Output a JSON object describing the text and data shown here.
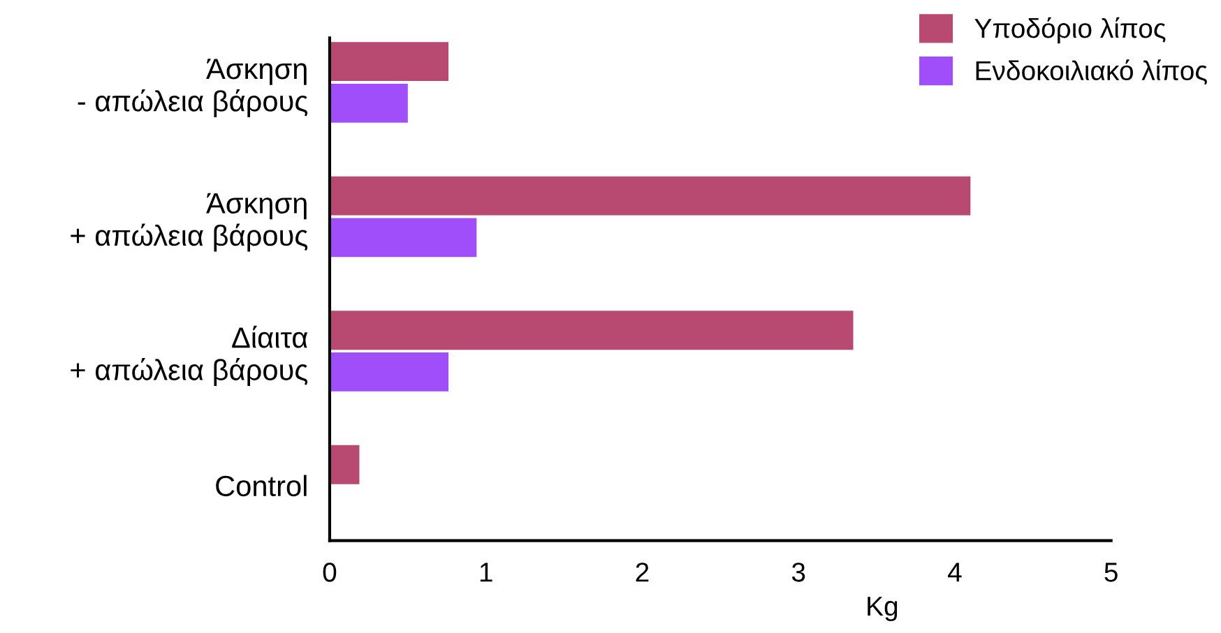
{
  "chart_data": {
    "type": "bar",
    "orientation": "horizontal",
    "xlabel": "Kg",
    "categories": [
      "Άσκηση\n- απώλεια βάρους",
      "Άσκηση\n+ απώλεια βάρους",
      "Δίαιτα\n+ απώλεια βάρους",
      "Control"
    ],
    "series": [
      {
        "name": "Υποδόριο λίπος",
        "color": "#b84a72",
        "values": [
          0.76,
          4.1,
          3.35,
          0.19
        ]
      },
      {
        "name": "Ενδοκοιλιακό λίπος",
        "color": "#a04dfa",
        "values": [
          0.5,
          0.94,
          0.76,
          null
        ]
      }
    ],
    "xlim": [
      0,
      5
    ],
    "xticks": [
      0,
      1,
      2,
      3,
      4,
      5
    ],
    "grid": false,
    "legend": "top right"
  }
}
